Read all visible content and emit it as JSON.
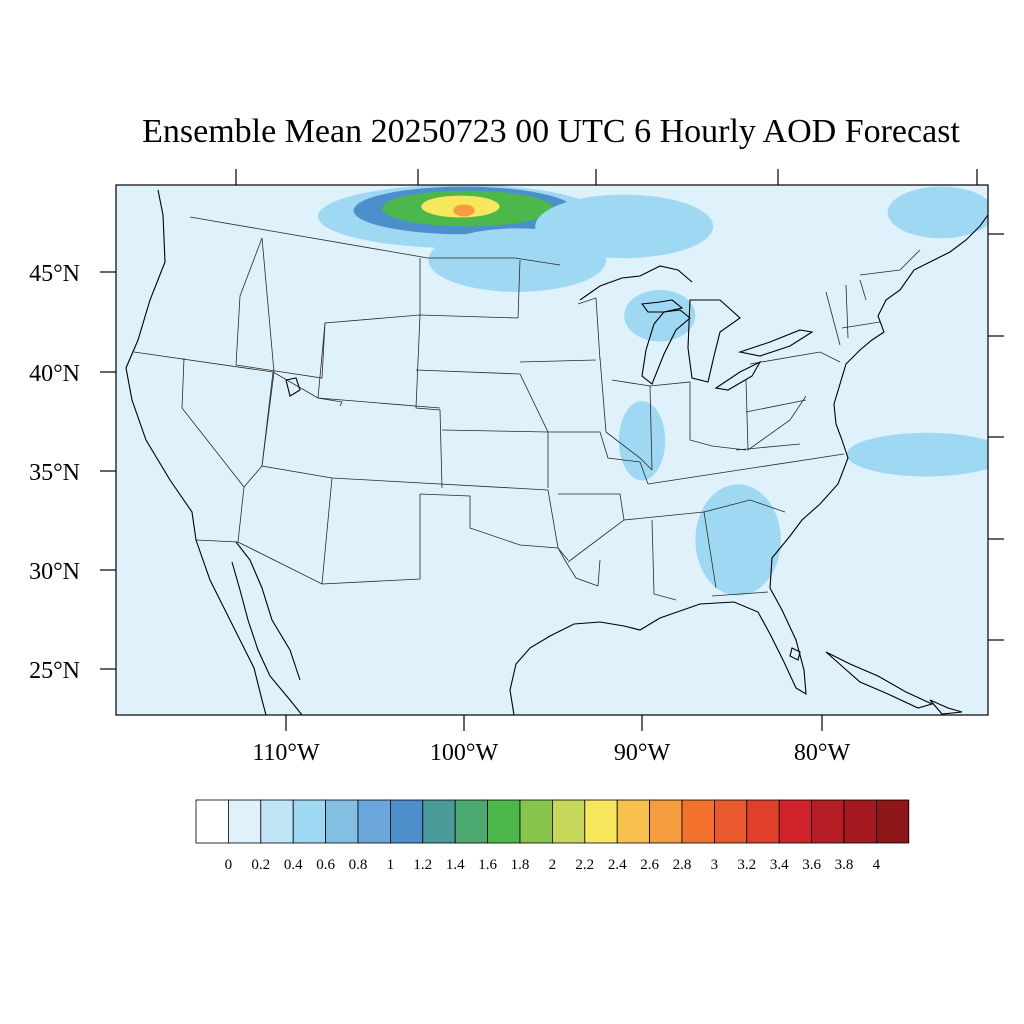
{
  "chart_data": {
    "type": "heatmap",
    "title": "Ensemble Mean 20250723 00 UTC 6 Hourly AOD Forecast",
    "lon_labels": [
      "110°W",
      "100°W",
      "90°W",
      "80°W"
    ],
    "lat_labels": [
      "45°N",
      "40°N",
      "35°N",
      "30°N",
      "25°N"
    ],
    "lon_ticks": [
      -110,
      -100,
      -90,
      -80
    ],
    "lat_ticks": [
      45,
      40,
      35,
      30,
      25
    ],
    "domain": {
      "lon": [
        -119,
        -70
      ],
      "lat": [
        22.7,
        49.4
      ]
    },
    "colorbar": {
      "levels": [
        0,
        0.2,
        0.4,
        0.6,
        0.8,
        1,
        1.2,
        1.4,
        1.6,
        1.8,
        2,
        2.2,
        2.4,
        2.6,
        2.8,
        3,
        3.2,
        3.4,
        3.6,
        3.8,
        4
      ],
      "labels": [
        "0",
        "0.2",
        "0.4",
        "0.6",
        "0.8",
        "1",
        "1.2",
        "1.4",
        "1.6",
        "1.8",
        "2",
        "2.2",
        "2.4",
        "2.6",
        "2.8",
        "3",
        "3.2",
        "3.4",
        "3.6",
        "3.8",
        "4"
      ],
      "colors": [
        "#ffffff",
        "#dff1fa",
        "#bfe5f6",
        "#9fd8f3",
        "#83bfe3",
        "#6aa6d9",
        "#4d8fcb",
        "#4a9b9a",
        "#4caa70",
        "#4cb74b",
        "#87c54d",
        "#c6d75a",
        "#f7e75c",
        "#f7c04c",
        "#f59c3f",
        "#f2712d",
        "#e85a2d",
        "#e0402b",
        "#d0222a",
        "#b71d25",
        "#a3191f",
        "#8e1518"
      ]
    },
    "plumes": [
      {
        "lon": -100.2,
        "lat": 47.8,
        "rlon": 8.0,
        "rlat": 1.6,
        "aod": 0.4
      },
      {
        "lon": -100.0,
        "lat": 48.1,
        "rlon": 6.2,
        "rlat": 1.2,
        "aod": 1.0
      },
      {
        "lon": -99.8,
        "lat": 48.2,
        "rlon": 4.8,
        "rlat": 0.9,
        "aod": 1.6
      },
      {
        "lon": -100.2,
        "lat": 48.3,
        "rlon": 2.2,
        "rlat": 0.55,
        "aod": 2.2
      },
      {
        "lon": -100.0,
        "lat": 48.1,
        "rlon": 0.6,
        "rlat": 0.3,
        "aod": 2.6
      },
      {
        "lon": -91.0,
        "lat": 47.3,
        "rlon": 5.0,
        "rlat": 1.6,
        "aod": 0.4
      },
      {
        "lon": -97.0,
        "lat": 45.6,
        "rlon": 5.0,
        "rlat": 1.6,
        "aod": 0.4
      },
      {
        "lon": -89.0,
        "lat": 42.8,
        "rlon": 2.0,
        "rlat": 1.3,
        "aod": 0.4
      },
      {
        "lon": -90.0,
        "lat": 36.5,
        "rlon": 1.3,
        "rlat": 2.0,
        "aod": 0.4
      },
      {
        "lon": -84.6,
        "lat": 31.5,
        "rlon": 2.4,
        "rlat": 2.8,
        "aod": 0.4
      },
      {
        "lon": -74.0,
        "lat": 35.8,
        "rlon": 4.5,
        "rlat": 1.1,
        "aod": 0.4
      },
      {
        "lon": -73.2,
        "lat": 48.0,
        "rlon": 3.0,
        "rlat": 1.3,
        "aod": 0.4
      }
    ]
  }
}
